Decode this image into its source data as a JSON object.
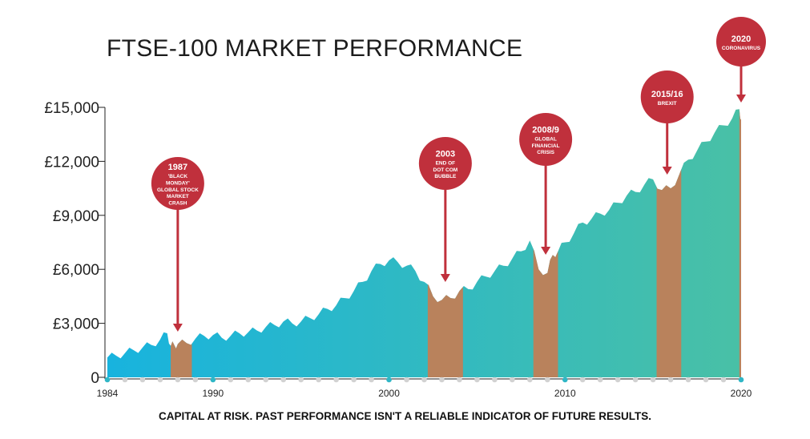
{
  "chart_data": {
    "type": "area",
    "title": "FTSE-100 MARKET PERFORMANCE",
    "ylim": [
      0,
      15000
    ],
    "xlim": [
      1984,
      2020
    ],
    "yticks": [
      {
        "value": 0,
        "label": "0"
      },
      {
        "value": 3000,
        "label": "£3,000"
      },
      {
        "value": 6000,
        "label": "£6,000"
      },
      {
        "value": 9000,
        "label": "£9,000"
      },
      {
        "value": 12000,
        "label": "£12,000"
      },
      {
        "value": 15000,
        "label": "£15,000"
      }
    ],
    "xticks": [
      {
        "value": 1984,
        "label": "1984"
      },
      {
        "value": 1990,
        "label": "1990"
      },
      {
        "value": 2000,
        "label": "2000"
      },
      {
        "value": 2010,
        "label": "2010"
      },
      {
        "value": 2020,
        "label": "2020"
      }
    ],
    "series": [
      {
        "x": [
          1984,
          1984.5,
          1985,
          1985.5,
          1986,
          1986.5,
          1987,
          1987.4,
          1987.6,
          1987.8,
          1988,
          1988.5,
          1989,
          1989.5,
          1990,
          1990.5,
          1991,
          1991.5,
          1992,
          1992.5,
          1993,
          1993.5,
          1994,
          1994.5,
          1995,
          1995.5,
          1996,
          1996.5,
          1997,
          1997.5,
          1998,
          1998.5,
          1999,
          1999.5,
          2000,
          2000.5,
          2001,
          2001.5,
          2002,
          2002.5,
          2003,
          2003.5,
          2004,
          2004.5,
          2005,
          2005.5,
          2006,
          2006.5,
          2007,
          2007.5,
          2008,
          2008.5,
          2009,
          2009.3,
          2009.6,
          2010,
          2010.5,
          2011,
          2011.5,
          2012,
          2012.5,
          2013,
          2013.5,
          2014,
          2014.5,
          2015,
          2015.5,
          2016,
          2016.5,
          2017,
          2017.5,
          2018,
          2018.5,
          2019,
          2019.5,
          2019.9,
          2020
        ],
        "values": [
          1100,
          1200,
          1350,
          1500,
          1650,
          1800,
          2100,
          2450,
          1750,
          1800,
          1850,
          1900,
          2150,
          2300,
          2350,
          2200,
          2300,
          2450,
          2500,
          2600,
          2800,
          2900,
          3100,
          3000,
          3100,
          3300,
          3500,
          3800,
          4000,
          4400,
          4800,
          5300,
          5900,
          6300,
          6500,
          6400,
          6200,
          5900,
          5300,
          4500,
          4300,
          4400,
          4800,
          4900,
          5300,
          5600,
          5900,
          6200,
          6600,
          7000,
          7600,
          6000,
          5800,
          6800,
          7000,
          7500,
          8000,
          8600,
          8800,
          9100,
          9300,
          9700,
          10100,
          10300,
          10700,
          11000,
          10400,
          10500,
          11300,
          12100,
          12600,
          13100,
          13600,
          14000,
          14400,
          14900,
          14300
        ]
      }
    ],
    "crash_periods": [
      [
        1987.6,
        1988.8
      ],
      [
        2002.2,
        2004.2
      ],
      [
        2008.2,
        2009.6
      ],
      [
        2015.2,
        2016.6
      ],
      [
        2019.9,
        2020
      ]
    ],
    "events": [
      {
        "title": "1987",
        "lines": [
          "'BLACK",
          "MONDAY'",
          "GLOBAL STOCK",
          "MARKET",
          "CRASH"
        ],
        "x": 1988.0
      },
      {
        "title": "2003",
        "lines": [
          "END OF",
          "DOT COM",
          "BUBBLE"
        ],
        "x": 2003.2
      },
      {
        "title": "2008/9",
        "lines": [
          "GLOBAL",
          "FINANCIAL",
          "CRISIS"
        ],
        "x": 2008.9
      },
      {
        "title": "2015/16",
        "lines": [
          "BREXIT"
        ],
        "x": 2015.8
      },
      {
        "title": "2020",
        "lines": [
          "CORONAVIRUS"
        ],
        "x": 2020
      }
    ],
    "colors": {
      "start": "#18b3de",
      "end": "#49c0a6",
      "crash": "#b9825c",
      "event": "#c0303c"
    },
    "disclaimer": "CAPITAL AT RISK. PAST PERFORMANCE ISN'T A RELIABLE INDICATOR OF FUTURE RESULTS."
  }
}
